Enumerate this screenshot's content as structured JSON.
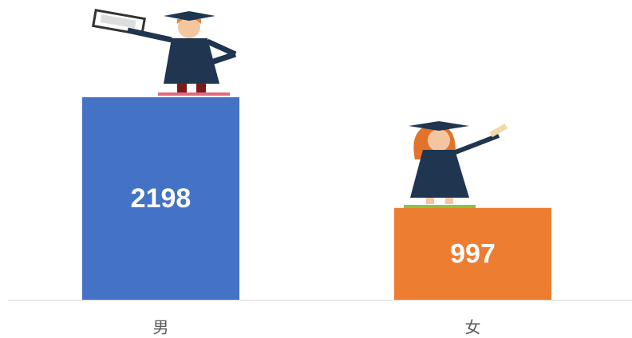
{
  "chart_data": {
    "type": "bar",
    "categories": [
      "男",
      "女"
    ],
    "values": [
      2198,
      997
    ],
    "colors": [
      "#4472c4",
      "#ed7d31"
    ]
  }
}
